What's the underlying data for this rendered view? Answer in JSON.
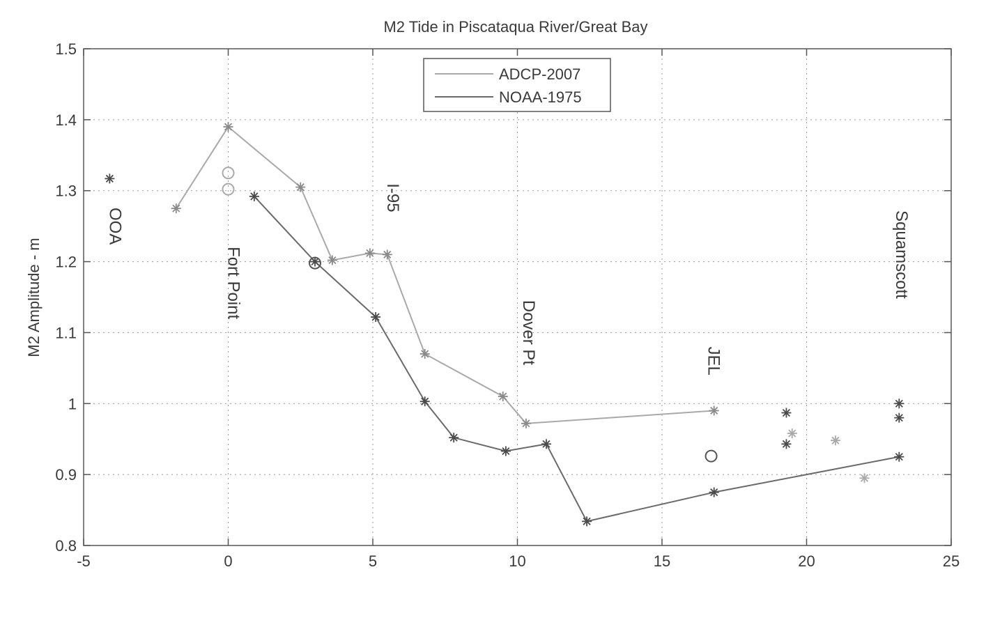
{
  "chart_data": {
    "type": "line",
    "title": "M2 Tide in Piscataqua River/Great Bay",
    "xlabel": "",
    "ylabel": "M2 Amplitude - m",
    "xlim": [
      -5,
      25
    ],
    "ylim": [
      0.8,
      1.5
    ],
    "x_ticks": [
      "-5",
      "0",
      "5",
      "10",
      "15",
      "20",
      "25"
    ],
    "y_ticks": [
      "0.8",
      "0.9",
      "1",
      "1.1",
      "1.2",
      "1.3",
      "1.4",
      "1.5"
    ],
    "grid": true,
    "legend_position": "top-center",
    "legend": [
      {
        "label": "ADCP-2007",
        "color": "#a9a9a9"
      },
      {
        "label": "NOAA-1975",
        "color": "#6a6a6a"
      }
    ],
    "series": [
      {
        "name": "ADCP-2007",
        "color": "#a9a9a9",
        "marker": "asterisk",
        "points": [
          [
            -1.8,
            1.275
          ],
          [
            0,
            1.39
          ],
          [
            2.5,
            1.305
          ],
          [
            3.6,
            1.202
          ],
          [
            4.9,
            1.212
          ],
          [
            5.5,
            1.21
          ],
          [
            6.8,
            1.07
          ],
          [
            9.5,
            1.01
          ],
          [
            10.3,
            0.972
          ],
          [
            16.8,
            0.99
          ]
        ]
      },
      {
        "name": "NOAA-1975",
        "color": "#6a6a6a",
        "marker": "asterisk",
        "points": [
          [
            0.9,
            1.292
          ],
          [
            3,
            1.2
          ],
          [
            5.1,
            1.122
          ],
          [
            6.8,
            1.003
          ],
          [
            7.8,
            0.952
          ],
          [
            9.6,
            0.933
          ],
          [
            11,
            0.943
          ],
          [
            12.4,
            0.834
          ],
          [
            16.8,
            0.875
          ],
          [
            23.2,
            0.925
          ]
        ]
      }
    ],
    "extra_points": [
      {
        "x": -4.1,
        "y": 1.317,
        "marker": "asterisk",
        "color": "#4a4a4a"
      },
      {
        "x": 19.3,
        "y": 0.987,
        "marker": "asterisk",
        "color": "#4a4a4a"
      },
      {
        "x": 19.3,
        "y": 0.943,
        "marker": "asterisk",
        "color": "#4a4a4a"
      },
      {
        "x": 19.5,
        "y": 0.958,
        "marker": "asterisk",
        "color": "#a9a9a9"
      },
      {
        "x": 21.0,
        "y": 0.948,
        "marker": "asterisk",
        "color": "#a9a9a9"
      },
      {
        "x": 22.0,
        "y": 0.895,
        "marker": "asterisk",
        "color": "#a9a9a9"
      },
      {
        "x": 23.2,
        "y": 1.0,
        "marker": "asterisk",
        "color": "#4a4a4a"
      },
      {
        "x": 23.2,
        "y": 0.98,
        "marker": "asterisk",
        "color": "#4a4a4a"
      },
      {
        "x": 0,
        "y": 1.325,
        "marker": "circle",
        "color": "#a9a9a9"
      },
      {
        "x": 0,
        "y": 1.302,
        "marker": "circle",
        "color": "#a9a9a9"
      },
      {
        "x": 3,
        "y": 1.198,
        "marker": "circle",
        "color": "#555555"
      },
      {
        "x": 16.7,
        "y": 0.926,
        "marker": "circle",
        "color": "#555555"
      }
    ],
    "annotations": [
      {
        "text": "OOA",
        "x": -4.1,
        "y": 1.25
      },
      {
        "text": "Fort Point",
        "x": 0,
        "y": 1.17
      },
      {
        "text": "I-95",
        "x": 5.5,
        "y": 1.29
      },
      {
        "text": "Dover Pt",
        "x": 10.2,
        "y": 1.1
      },
      {
        "text": "JEL",
        "x": 16.6,
        "y": 1.06
      },
      {
        "text": "Squamscott",
        "x": 23.1,
        "y": 1.21
      }
    ]
  }
}
